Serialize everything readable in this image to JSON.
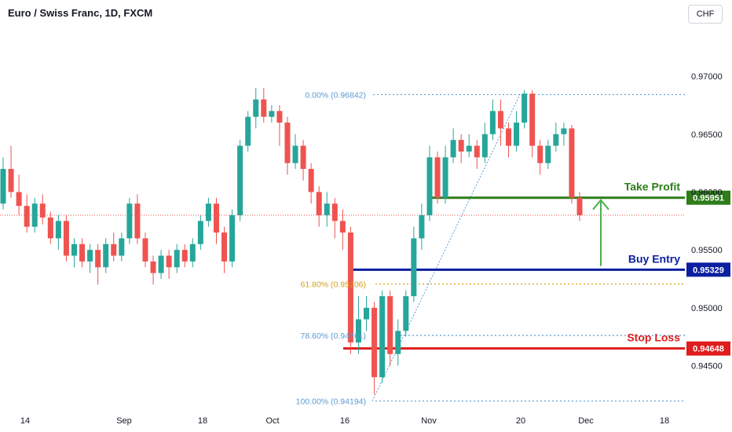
{
  "header": {
    "title": "Euro / Swiss Franc, 1D, FXCM",
    "currency_button": "CHF"
  },
  "colors": {
    "up": "#26a69a",
    "down": "#ef5350",
    "take_profit": "#2e7d1a",
    "buy_entry": "#0b1fa0",
    "stop_loss": "#e01c1c",
    "fib_blue": "#5b9bd5",
    "fib_orange": "#d4a017",
    "arrow": "#4caf50",
    "current_price_line": "#ef5350"
  },
  "chart_data": {
    "type": "candlestick",
    "title": "Euro / Swiss Franc, 1D, FXCM",
    "ylim": [
      0.9413,
      0.9732
    ],
    "y_ticks": [
      "0.97000",
      "0.96500",
      "0.96000",
      "0.95500",
      "0.95000",
      "0.94500"
    ],
    "x_tick_labels": [
      "14",
      "Sep",
      "18",
      "Oct",
      "16",
      "Nov",
      "20",
      "Dec",
      "18"
    ],
    "current_price": 0.958,
    "fib_levels": [
      {
        "label": "0.00% (0.96842)",
        "value": 0.96842,
        "style": "blue"
      },
      {
        "label": "61.80% (0.95206)",
        "value": 0.95206,
        "style": "orange"
      },
      {
        "label": "78.60% (0.94761)",
        "value": 0.94761,
        "style": "blue"
      },
      {
        "label": "100.00% (0.94194)",
        "value": 0.94194,
        "style": "blue"
      }
    ],
    "levels": [
      {
        "label": "Take Profit",
        "value": 0.95951,
        "tag": "0.95951",
        "style": "take_profit"
      },
      {
        "label": "Buy Entry",
        "value": 0.95329,
        "tag": "0.95329",
        "style": "buy_entry"
      },
      {
        "label": "Stop Loss",
        "value": 0.94648,
        "tag": "0.94648",
        "style": "stop_loss"
      }
    ],
    "candles": [
      [
        0.959,
        0.962,
        0.9585,
        0.963
      ],
      [
        0.962,
        0.96,
        0.9595,
        0.964
      ],
      [
        0.96,
        0.9588,
        0.958,
        0.9615
      ],
      [
        0.9588,
        0.957,
        0.9565,
        0.9598
      ],
      [
        0.957,
        0.959,
        0.9565,
        0.9595
      ],
      [
        0.959,
        0.9578,
        0.9572,
        0.9598
      ],
      [
        0.9578,
        0.956,
        0.9555,
        0.9583
      ],
      [
        0.956,
        0.9575,
        0.955,
        0.958
      ],
      [
        0.9575,
        0.9545,
        0.954,
        0.958
      ],
      [
        0.9545,
        0.9555,
        0.9535,
        0.956
      ],
      [
        0.9555,
        0.954,
        0.9535,
        0.956
      ],
      [
        0.954,
        0.955,
        0.953,
        0.9555
      ],
      [
        0.955,
        0.9535,
        0.952,
        0.9555
      ],
      [
        0.9535,
        0.9555,
        0.953,
        0.956
      ],
      [
        0.9555,
        0.9545,
        0.954,
        0.9565
      ],
      [
        0.9545,
        0.956,
        0.954,
        0.9565
      ],
      [
        0.956,
        0.959,
        0.9555,
        0.9595
      ],
      [
        0.959,
        0.956,
        0.9555,
        0.9598
      ],
      [
        0.956,
        0.954,
        0.9535,
        0.9565
      ],
      [
        0.954,
        0.953,
        0.952,
        0.9545
      ],
      [
        0.953,
        0.9545,
        0.9525,
        0.955
      ],
      [
        0.9545,
        0.9535,
        0.9525,
        0.955
      ],
      [
        0.9535,
        0.955,
        0.953,
        0.9555
      ],
      [
        0.955,
        0.954,
        0.9535,
        0.9555
      ],
      [
        0.954,
        0.9555,
        0.9535,
        0.956
      ],
      [
        0.9555,
        0.9575,
        0.955,
        0.958
      ],
      [
        0.9575,
        0.959,
        0.957,
        0.9595
      ],
      [
        0.959,
        0.9565,
        0.9555,
        0.9595
      ],
      [
        0.9565,
        0.954,
        0.953,
        0.957
      ],
      [
        0.954,
        0.958,
        0.9535,
        0.9585
      ],
      [
        0.958,
        0.964,
        0.9575,
        0.9645
      ],
      [
        0.964,
        0.9665,
        0.9635,
        0.967
      ],
      [
        0.9665,
        0.968,
        0.9655,
        0.969
      ],
      [
        0.968,
        0.9665,
        0.966,
        0.969
      ],
      [
        0.9665,
        0.967,
        0.966,
        0.9675
      ],
      [
        0.967,
        0.966,
        0.964,
        0.9675
      ],
      [
        0.966,
        0.9625,
        0.9615,
        0.9665
      ],
      [
        0.9625,
        0.964,
        0.962,
        0.965
      ],
      [
        0.964,
        0.962,
        0.961,
        0.9645
      ],
      [
        0.962,
        0.96,
        0.959,
        0.9625
      ],
      [
        0.96,
        0.958,
        0.957,
        0.9605
      ],
      [
        0.958,
        0.959,
        0.957,
        0.96
      ],
      [
        0.959,
        0.9575,
        0.956,
        0.9595
      ],
      [
        0.9575,
        0.9565,
        0.955,
        0.9585
      ],
      [
        0.9565,
        0.947,
        0.946,
        0.957
      ],
      [
        0.947,
        0.949,
        0.946,
        0.951
      ],
      [
        0.949,
        0.95,
        0.948,
        0.951
      ],
      [
        0.95,
        0.944,
        0.9425,
        0.9505
      ],
      [
        0.944,
        0.951,
        0.9435,
        0.9515
      ],
      [
        0.951,
        0.946,
        0.945,
        0.9515
      ],
      [
        0.946,
        0.948,
        0.945,
        0.949
      ],
      [
        0.948,
        0.951,
        0.9475,
        0.9515
      ],
      [
        0.951,
        0.956,
        0.9505,
        0.957
      ],
      [
        0.956,
        0.958,
        0.955,
        0.959
      ],
      [
        0.958,
        0.963,
        0.9575,
        0.964
      ],
      [
        0.963,
        0.9595,
        0.959,
        0.9635
      ],
      [
        0.9595,
        0.963,
        0.959,
        0.964
      ],
      [
        0.963,
        0.9645,
        0.9625,
        0.9655
      ],
      [
        0.9645,
        0.9635,
        0.9625,
        0.965
      ],
      [
        0.9635,
        0.964,
        0.963,
        0.965
      ],
      [
        0.964,
        0.963,
        0.962,
        0.9645
      ],
      [
        0.963,
        0.965,
        0.9625,
        0.966
      ],
      [
        0.965,
        0.967,
        0.9645,
        0.968
      ],
      [
        0.967,
        0.9655,
        0.964,
        0.968
      ],
      [
        0.9655,
        0.964,
        0.963,
        0.966
      ],
      [
        0.964,
        0.966,
        0.9635,
        0.967
      ],
      [
        0.966,
        0.9685,
        0.9655,
        0.9688
      ],
      [
        0.9685,
        0.964,
        0.963,
        0.9688
      ],
      [
        0.964,
        0.9625,
        0.9615,
        0.9645
      ],
      [
        0.9625,
        0.964,
        0.962,
        0.9645
      ],
      [
        0.964,
        0.965,
        0.9635,
        0.966
      ],
      [
        0.965,
        0.9655,
        0.964,
        0.966
      ],
      [
        0.9655,
        0.9595,
        0.959,
        0.9658
      ],
      [
        0.9595,
        0.958,
        0.9575,
        0.96
      ]
    ]
  }
}
